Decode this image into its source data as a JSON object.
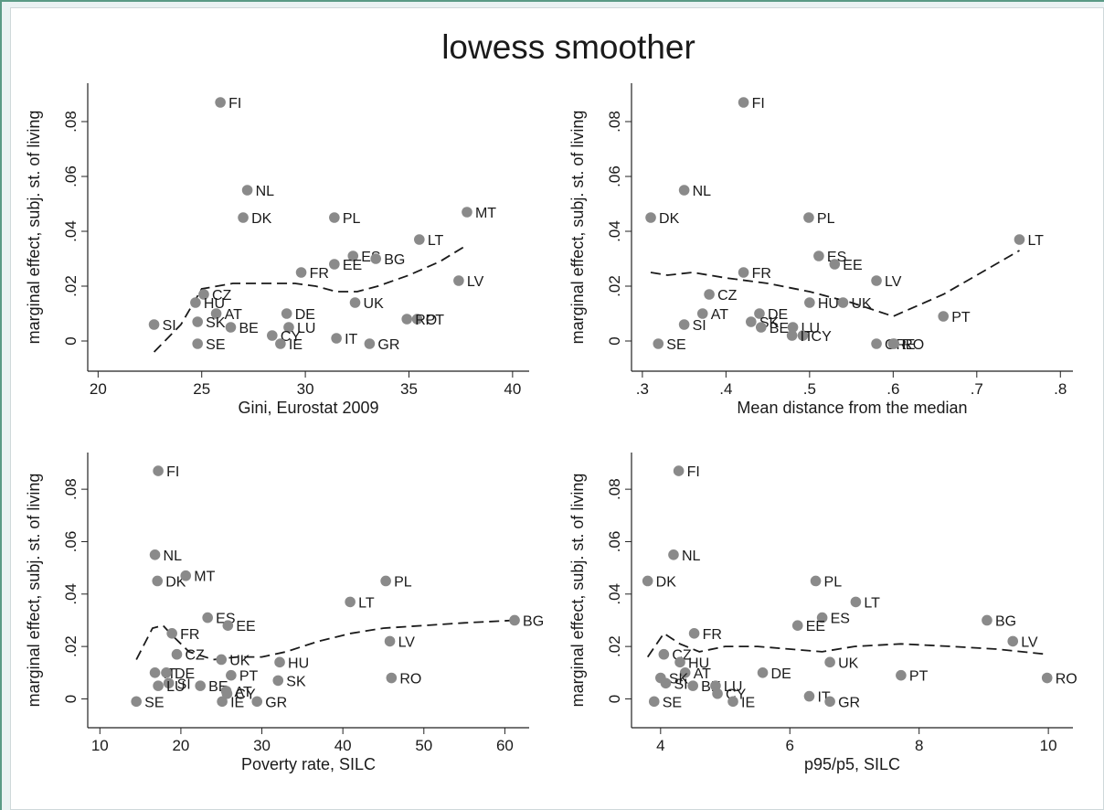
{
  "figure": {
    "title": "lowess smoother"
  },
  "chart_data": [
    {
      "type": "scatter",
      "xlabel": "Gini, Eurostat 2009",
      "ylabel": "marginal effect, subj. st. of living",
      "xlim": [
        19.5,
        40.8
      ],
      "ylim": [
        -0.011,
        0.094
      ],
      "xticks": [
        20,
        25,
        30,
        35,
        40
      ],
      "yticks": [
        0,
        0.02,
        0.04,
        0.06,
        0.08
      ],
      "ytick_labels": [
        "0",
        ".02",
        ".04",
        ".06",
        ".08"
      ],
      "points": [
        {
          "label": "FI",
          "x": 25.9,
          "y": 0.087
        },
        {
          "label": "NL",
          "x": 27.2,
          "y": 0.055
        },
        {
          "label": "DK",
          "x": 27.0,
          "y": 0.045
        },
        {
          "label": "PL",
          "x": 31.4,
          "y": 0.045
        },
        {
          "label": "MT",
          "x": 37.8,
          "y": 0.047
        },
        {
          "label": "LT",
          "x": 35.5,
          "y": 0.037
        },
        {
          "label": "ES",
          "x": 32.3,
          "y": 0.031
        },
        {
          "label": "BG",
          "x": 33.4,
          "y": 0.03
        },
        {
          "label": "EE",
          "x": 31.4,
          "y": 0.028
        },
        {
          "label": "FR",
          "x": 29.8,
          "y": 0.025
        },
        {
          "label": "LV",
          "x": 37.4,
          "y": 0.022
        },
        {
          "label": "CZ",
          "x": 25.1,
          "y": 0.017
        },
        {
          "label": "HU",
          "x": 24.7,
          "y": 0.014
        },
        {
          "label": "UK",
          "x": 32.4,
          "y": 0.014
        },
        {
          "label": "AT",
          "x": 25.7,
          "y": 0.01
        },
        {
          "label": "DE",
          "x": 29.1,
          "y": 0.01
        },
        {
          "label": "PT",
          "x": 35.4,
          "y": 0.008
        },
        {
          "label": "RO",
          "x": 34.9,
          "y": 0.008
        },
        {
          "label": "SI",
          "x": 22.7,
          "y": 0.006
        },
        {
          "label": "SK",
          "x": 24.8,
          "y": 0.007
        },
        {
          "label": "BE",
          "x": 26.4,
          "y": 0.005
        },
        {
          "label": "LU",
          "x": 29.2,
          "y": 0.005
        },
        {
          "label": "CY",
          "x": 28.4,
          "y": 0.002
        },
        {
          "label": "IT",
          "x": 31.5,
          "y": 0.001
        },
        {
          "label": "SE",
          "x": 24.8,
          "y": -0.001
        },
        {
          "label": "IE",
          "x": 28.8,
          "y": -0.001
        },
        {
          "label": "GR",
          "x": 33.1,
          "y": -0.001
        }
      ],
      "smoother": [
        [
          22.7,
          -0.004
        ],
        [
          24.0,
          0.006
        ],
        [
          25.0,
          0.019
        ],
        [
          26.5,
          0.021
        ],
        [
          28.0,
          0.021
        ],
        [
          29.5,
          0.021
        ],
        [
          30.5,
          0.02
        ],
        [
          31.5,
          0.018
        ],
        [
          32.5,
          0.018
        ],
        [
          33.5,
          0.02
        ],
        [
          35.0,
          0.024
        ],
        [
          36.5,
          0.029
        ],
        [
          37.8,
          0.035
        ]
      ]
    },
    {
      "type": "scatter",
      "xlabel": "Mean distance from the median",
      "ylabel": "marginal effect, subj. st. of living",
      "xlim": [
        0.287,
        0.815
      ],
      "ylim": [
        -0.011,
        0.094
      ],
      "xticks": [
        0.3,
        0.4,
        0.5,
        0.6,
        0.7,
        0.8
      ],
      "xtick_labels": [
        ".3",
        ".4",
        ".5",
        ".6",
        ".7",
        ".8"
      ],
      "yticks": [
        0,
        0.02,
        0.04,
        0.06,
        0.08
      ],
      "ytick_labels": [
        "0",
        ".02",
        ".04",
        ".06",
        ".08"
      ],
      "points": [
        {
          "label": "FI",
          "x": 0.421,
          "y": 0.087
        },
        {
          "label": "NL",
          "x": 0.35,
          "y": 0.055
        },
        {
          "label": "DK",
          "x": 0.31,
          "y": 0.045
        },
        {
          "label": "PL",
          "x": 0.499,
          "y": 0.045
        },
        {
          "label": "LT",
          "x": 0.751,
          "y": 0.037
        },
        {
          "label": "ES",
          "x": 0.511,
          "y": 0.031
        },
        {
          "label": "EE",
          "x": 0.53,
          "y": 0.028
        },
        {
          "label": "FR",
          "x": 0.421,
          "y": 0.025
        },
        {
          "label": "LV",
          "x": 0.58,
          "y": 0.022
        },
        {
          "label": "CZ",
          "x": 0.38,
          "y": 0.017
        },
        {
          "label": "HU",
          "x": 0.5,
          "y": 0.014
        },
        {
          "label": "UK",
          "x": 0.54,
          "y": 0.014
        },
        {
          "label": "AT",
          "x": 0.372,
          "y": 0.01
        },
        {
          "label": "DE",
          "x": 0.44,
          "y": 0.01
        },
        {
          "label": "PT",
          "x": 0.66,
          "y": 0.009
        },
        {
          "label": "SK",
          "x": 0.43,
          "y": 0.007
        },
        {
          "label": "SI",
          "x": 0.35,
          "y": 0.006
        },
        {
          "label": "BE",
          "x": 0.442,
          "y": 0.005
        },
        {
          "label": "LU",
          "x": 0.48,
          "y": 0.005
        },
        {
          "label": "CY",
          "x": 0.492,
          "y": 0.002
        },
        {
          "label": "IT",
          "x": 0.479,
          "y": 0.002
        },
        {
          "label": "SE",
          "x": 0.319,
          "y": -0.001
        },
        {
          "label": "GR",
          "x": 0.58,
          "y": -0.001
        },
        {
          "label": "IE",
          "x": 0.6,
          "y": -0.001
        },
        {
          "label": "RO",
          "x": 0.601,
          "y": -0.001
        }
      ],
      "smoother": [
        [
          0.31,
          0.025
        ],
        [
          0.33,
          0.024
        ],
        [
          0.36,
          0.025
        ],
        [
          0.4,
          0.023
        ],
        [
          0.45,
          0.021
        ],
        [
          0.5,
          0.018
        ],
        [
          0.55,
          0.014
        ],
        [
          0.6,
          0.009
        ],
        [
          0.66,
          0.017
        ],
        [
          0.7,
          0.024
        ],
        [
          0.751,
          0.033
        ]
      ]
    },
    {
      "type": "scatter",
      "xlabel": "Poverty rate, SILC",
      "ylabel": "marginal effect, subj. st. of living",
      "xlim": [
        8.5,
        63.0
      ],
      "ylim": [
        -0.011,
        0.094
      ],
      "xticks": [
        10,
        20,
        30,
        40,
        50,
        60
      ],
      "yticks": [
        0,
        0.02,
        0.04,
        0.06,
        0.08
      ],
      "ytick_labels": [
        "0",
        ".02",
        ".04",
        ".06",
        ".08"
      ],
      "points": [
        {
          "label": "FI",
          "x": 17.2,
          "y": 0.087
        },
        {
          "label": "NL",
          "x": 16.8,
          "y": 0.055
        },
        {
          "label": "DK",
          "x": 17.1,
          "y": 0.045
        },
        {
          "label": "MT",
          "x": 20.6,
          "y": 0.047
        },
        {
          "label": "PL",
          "x": 45.3,
          "y": 0.045
        },
        {
          "label": "LT",
          "x": 40.9,
          "y": 0.037
        },
        {
          "label": "BG",
          "x": 61.2,
          "y": 0.03
        },
        {
          "label": "ES",
          "x": 23.3,
          "y": 0.031
        },
        {
          "label": "EE",
          "x": 25.8,
          "y": 0.028
        },
        {
          "label": "FR",
          "x": 18.9,
          "y": 0.025
        },
        {
          "label": "LV",
          "x": 45.8,
          "y": 0.022
        },
        {
          "label": "CZ",
          "x": 19.5,
          "y": 0.017
        },
        {
          "label": "UK",
          "x": 25.0,
          "y": 0.015
        },
        {
          "label": "HU",
          "x": 32.2,
          "y": 0.014
        },
        {
          "label": "IT",
          "x": 16.8,
          "y": 0.01
        },
        {
          "label": "DE",
          "x": 18.2,
          "y": 0.01
        },
        {
          "label": "PT",
          "x": 26.2,
          "y": 0.009
        },
        {
          "label": "RO",
          "x": 46.0,
          "y": 0.008
        },
        {
          "label": "SK",
          "x": 32.0,
          "y": 0.007
        },
        {
          "label": "SI",
          "x": 18.5,
          "y": 0.006
        },
        {
          "label": "LU",
          "x": 17.2,
          "y": 0.005
        },
        {
          "label": "BE",
          "x": 22.4,
          "y": 0.005
        },
        {
          "label": "AT",
          "x": 25.6,
          "y": 0.003
        },
        {
          "label": "CY",
          "x": 25.7,
          "y": 0.002
        },
        {
          "label": "IE",
          "x": 25.1,
          "y": -0.001
        },
        {
          "label": "SE",
          "x": 14.5,
          "y": -0.001
        },
        {
          "label": "GR",
          "x": 29.4,
          "y": -0.001
        }
      ],
      "smoother": [
        [
          14.5,
          0.015
        ],
        [
          16.5,
          0.027
        ],
        [
          17.8,
          0.028
        ],
        [
          19.0,
          0.024
        ],
        [
          21.0,
          0.018
        ],
        [
          24.0,
          0.015
        ],
        [
          27.0,
          0.016
        ],
        [
          30.0,
          0.016
        ],
        [
          33.0,
          0.018
        ],
        [
          37.0,
          0.022
        ],
        [
          41.0,
          0.025
        ],
        [
          45.0,
          0.027
        ],
        [
          50.0,
          0.028
        ],
        [
          55.0,
          0.029
        ],
        [
          61.2,
          0.03
        ]
      ]
    },
    {
      "type": "scatter",
      "xlabel": "p95/p5, SILC",
      "ylabel": "marginal effect, subj. st. of living",
      "xlim": [
        3.55,
        10.38
      ],
      "ylim": [
        -0.011,
        0.094
      ],
      "xticks": [
        4,
        6,
        8,
        10
      ],
      "yticks": [
        0,
        0.02,
        0.04,
        0.06,
        0.08
      ],
      "ytick_labels": [
        "0",
        ".02",
        ".04",
        ".06",
        ".08"
      ],
      "points": [
        {
          "label": "FI",
          "x": 4.28,
          "y": 0.087
        },
        {
          "label": "NL",
          "x": 4.2,
          "y": 0.055
        },
        {
          "label": "DK",
          "x": 3.8,
          "y": 0.045
        },
        {
          "label": "PL",
          "x": 6.4,
          "y": 0.045
        },
        {
          "label": "LT",
          "x": 7.02,
          "y": 0.037
        },
        {
          "label": "BG",
          "x": 9.05,
          "y": 0.03
        },
        {
          "label": "ES",
          "x": 6.5,
          "y": 0.031
        },
        {
          "label": "EE",
          "x": 6.12,
          "y": 0.028
        },
        {
          "label": "FR",
          "x": 4.52,
          "y": 0.025
        },
        {
          "label": "LV",
          "x": 9.45,
          "y": 0.022
        },
        {
          "label": "CZ",
          "x": 4.05,
          "y": 0.017
        },
        {
          "label": "HU",
          "x": 4.3,
          "y": 0.014
        },
        {
          "label": "UK",
          "x": 6.62,
          "y": 0.014
        },
        {
          "label": "DE",
          "x": 5.58,
          "y": 0.01
        },
        {
          "label": "AT",
          "x": 4.38,
          "y": 0.01
        },
        {
          "label": "PT",
          "x": 7.72,
          "y": 0.009
        },
        {
          "label": "RO",
          "x": 9.98,
          "y": 0.008
        },
        {
          "label": "SK",
          "x": 4.0,
          "y": 0.008
        },
        {
          "label": "SI",
          "x": 4.08,
          "y": 0.006
        },
        {
          "label": "BE",
          "x": 4.5,
          "y": 0.005
        },
        {
          "label": "LU",
          "x": 4.85,
          "y": 0.005
        },
        {
          "label": "CY",
          "x": 4.88,
          "y": 0.002
        },
        {
          "label": "IT",
          "x": 6.3,
          "y": 0.001
        },
        {
          "label": "SE",
          "x": 3.9,
          "y": -0.001
        },
        {
          "label": "IE",
          "x": 5.12,
          "y": -0.001
        },
        {
          "label": "GR",
          "x": 6.62,
          "y": -0.001
        }
      ],
      "smoother": [
        [
          3.8,
          0.016
        ],
        [
          4.05,
          0.025
        ],
        [
          4.3,
          0.021
        ],
        [
          4.6,
          0.018
        ],
        [
          5.0,
          0.02
        ],
        [
          5.5,
          0.02
        ],
        [
          6.0,
          0.019
        ],
        [
          6.5,
          0.018
        ],
        [
          7.0,
          0.02
        ],
        [
          7.72,
          0.021
        ],
        [
          8.5,
          0.02
        ],
        [
          9.2,
          0.019
        ],
        [
          9.98,
          0.017
        ]
      ]
    }
  ]
}
